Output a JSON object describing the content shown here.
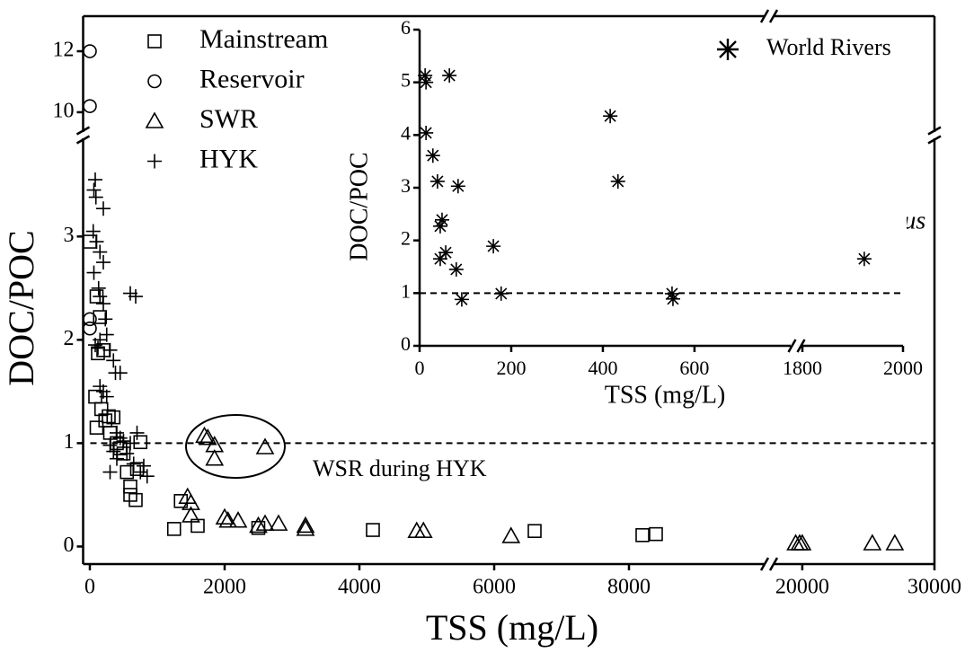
{
  "chart_data": [
    {
      "type": "scatter",
      "xlabel": "TSS (mg/L)",
      "ylabel": "DOC/POC",
      "xlim": [
        -100,
        30000
      ],
      "xbreak": [
        10000,
        17900
      ],
      "xticks": [
        0,
        2000,
        4000,
        6000,
        8000,
        20000,
        30000
      ],
      "ylim": [
        -0.17,
        13.15
      ],
      "ybreak": [
        3.95,
        9.35
      ],
      "yticks": [
        0,
        1,
        2,
        3,
        10,
        12
      ],
      "reference_line": 1,
      "annotations": [
        "WSR during HYK"
      ],
      "series": [
        {
          "name": "Mainstream",
          "marker": "square",
          "color": "#000000",
          "x": [
            0,
            100,
            150,
            200,
            120,
            80,
            170,
            230,
            100,
            280,
            350,
            300,
            400,
            450,
            500,
            750,
            550,
            600,
            600,
            680,
            700,
            1250,
            1350,
            1600,
            2500,
            4200,
            6600,
            8200,
            8400
          ],
          "values": [
            2.95,
            2.42,
            2.22,
            1.9,
            1.87,
            1.45,
            1.33,
            1.22,
            1.15,
            1.26,
            1.25,
            1.1,
            1.0,
            0.95,
            0.9,
            1.01,
            0.72,
            0.58,
            0.5,
            0.45,
            0.75,
            0.17,
            0.44,
            0.2,
            0.18,
            0.16,
            0.15,
            0.11,
            0.12
          ]
        },
        {
          "name": "Reservoir",
          "marker": "circle",
          "color": "#000000",
          "x": [
            0,
            0,
            0,
            0
          ],
          "values": [
            12,
            10.2,
            2.2,
            2.11
          ]
        },
        {
          "name": "SWR",
          "marker": "triangle",
          "color": "#000000",
          "x": [
            1700,
            1750,
            1850,
            1850,
            2600,
            1450,
            1500,
            1500,
            2000,
            2050,
            2200,
            2500,
            2600,
            2800,
            3200,
            3200,
            4850,
            4950,
            6250,
            19500,
            19800,
            20000,
            25300,
            27000
          ],
          "values": [
            1.07,
            1.05,
            0.98,
            0.85,
            0.96,
            0.48,
            0.42,
            0.3,
            0.28,
            0.25,
            0.25,
            0.2,
            0.22,
            0.22,
            0.2,
            0.17,
            0.15,
            0.15,
            0.1,
            0.03,
            0.03,
            0.03,
            0.03,
            0.03
          ]
        },
        {
          "name": "HYK",
          "marker": "plus",
          "color": "#000000",
          "x": [
            80,
            60,
            90,
            200,
            50,
            100,
            150,
            200,
            60,
            130,
            150,
            200,
            230,
            250,
            150,
            80,
            120,
            300,
            350,
            380,
            450,
            150,
            200,
            250,
            400,
            450,
            500,
            600,
            700,
            300,
            350,
            400,
            550,
            650,
            750,
            850,
            300,
            800,
            600,
            680
          ],
          "values": [
            3.55,
            3.45,
            3.38,
            3.27,
            3.05,
            2.95,
            2.85,
            2.75,
            2.65,
            2.5,
            2.42,
            2.35,
            2.2,
            2.05,
            2.0,
            1.95,
            1.92,
            1.9,
            1.8,
            1.68,
            1.68,
            1.55,
            1.5,
            1.45,
            1.1,
            1.05,
            1.02,
            1.0,
            1.1,
            0.98,
            0.92,
            0.85,
            0.9,
            0.8,
            0.72,
            0.68,
            0.72,
            0.78,
            2.45,
            2.42
          ]
        }
      ]
    },
    {
      "type": "scatter",
      "xlabel": "TSS (mg/L)",
      "ylabel": "DOC/POC",
      "xlim": [
        0,
        2000
      ],
      "xbreak": [
        810,
        1800
      ],
      "xticks": [
        0,
        200,
        400,
        600,
        1800,
        2000
      ],
      "ylim": [
        0,
        6
      ],
      "yticks": [
        0,
        1,
        2,
        3,
        4,
        5,
        6
      ],
      "reference_line": 1,
      "annotations": [
        "Indus"
      ],
      "series": [
        {
          "name": "World Rivers",
          "marker": "asterisk",
          "color": "#000000",
          "x": [
            12,
            14,
            65,
            14,
            29,
            39,
            84,
            49,
            45,
            57,
            45,
            80,
            92,
            178,
            161,
            416,
            433,
            551,
            553,
            1923
          ],
          "values": [
            5.13,
            5.0,
            5.13,
            4.04,
            3.61,
            3.12,
            3.03,
            2.39,
            2.27,
            1.77,
            1.65,
            1.45,
            0.88,
            0.99,
            1.89,
            4.36,
            3.12,
            0.99,
            0.89,
            1.65
          ]
        }
      ]
    }
  ]
}
